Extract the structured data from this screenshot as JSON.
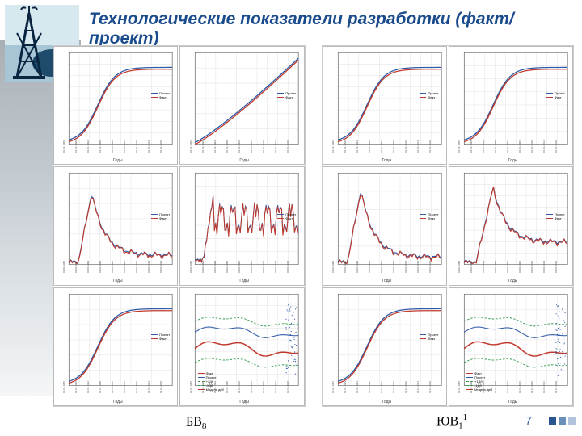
{
  "title": "Технологические показатели разработки (факт/проект)",
  "page_number": 7,
  "footer_dots": [
    "#2a568f",
    "#6a8fb8",
    "#b0c3da"
  ],
  "logo": {
    "bg_top": "#cfe3ea",
    "bg_bottom": "#9fbfd0",
    "blob": "#1e4a6b",
    "tower": "#0a2540",
    "pump": "#0a2540"
  },
  "captions": {
    "left": "БВ",
    "left_sub": "8",
    "right": "ЮВ",
    "right_sub": "1",
    "right_sup": "1"
  },
  "colors": {
    "fact": "#c0392b",
    "project": "#2e5aa8",
    "green": "#2e9a4a",
    "grid": "#d6d6d6",
    "axis": "#555",
    "border": "#bbb"
  },
  "series_labels": {
    "fact": "Факт",
    "project": "Проект",
    "p10": "+1Дб",
    "p90": "-1Дб",
    "model": "Модель деб"
  },
  "axis_labels": {
    "x": "Годы"
  },
  "xticks": [
    "01.01.1986",
    "01.01.1990",
    "01.01.1994",
    "01.01.1998",
    "01.01.2002",
    "01.01.2006",
    "01.01.2010",
    "01.01.2014",
    "01.01.2018"
  ],
  "panels": [
    {
      "id": "bv8",
      "charts": [
        {
          "type": "s-curve",
          "ylim": [
            0,
            80000
          ],
          "ytick": 10000,
          "shape": "s",
          "legend": [
            "project",
            "fact"
          ]
        },
        {
          "type": "s-curve",
          "ylim": [
            0,
            180000
          ],
          "ytick": 30000,
          "shape": "ramp",
          "legend": [
            "project",
            "fact"
          ]
        },
        {
          "type": "peak",
          "ylim": [
            0,
            30000
          ],
          "ytick": 5000,
          "peak_x": 0.22,
          "peak_h": 0.82,
          "tail": 0.1,
          "legend": [
            "project",
            "fact"
          ]
        },
        {
          "type": "noisy",
          "ylim": [
            0,
            35000
          ],
          "ytick": 5000,
          "noisy_mean": 0.55,
          "legend": [
            "project",
            "fact"
          ]
        },
        {
          "type": "s-curve",
          "ylim": [
            0,
            300
          ],
          "ytick": 50,
          "shape": "s",
          "legend": [
            "project",
            "fact"
          ]
        },
        {
          "type": "bands",
          "ylim": [
            0,
            800
          ],
          "ytick": 100,
          "legend": [
            "fact",
            "project",
            "p10",
            "p90",
            "model"
          ]
        }
      ]
    },
    {
      "id": "uv1",
      "charts": [
        {
          "type": "s-curve",
          "ylim": [
            0,
            80000
          ],
          "ytick": 10000,
          "shape": "s",
          "legend": [
            "project",
            "fact"
          ]
        },
        {
          "type": "s-curve",
          "ylim": [
            0,
            28000
          ],
          "ytick": 4000,
          "shape": "s",
          "legend": [
            "project",
            "fact"
          ]
        },
        {
          "type": "peak",
          "ylim": [
            0,
            25000
          ],
          "ytick": 5000,
          "peak_x": 0.22,
          "peak_h": 0.85,
          "tail": 0.08,
          "legend": [
            "project",
            "fact"
          ]
        },
        {
          "type": "peak",
          "ylim": [
            0,
            16000
          ],
          "ytick": 2000,
          "peak_x": 0.28,
          "peak_h": 0.88,
          "tail": 0.25,
          "legend": [
            "project",
            "fact"
          ]
        },
        {
          "type": "s-curve",
          "ylim": [
            0,
            300
          ],
          "ytick": 50,
          "shape": "s",
          "legend": [
            "project",
            "fact"
          ]
        },
        {
          "type": "bands",
          "ylim": [
            0,
            600
          ],
          "ytick": 100,
          "legend": [
            "fact",
            "project",
            "p10",
            "p90",
            "model"
          ]
        }
      ]
    }
  ]
}
